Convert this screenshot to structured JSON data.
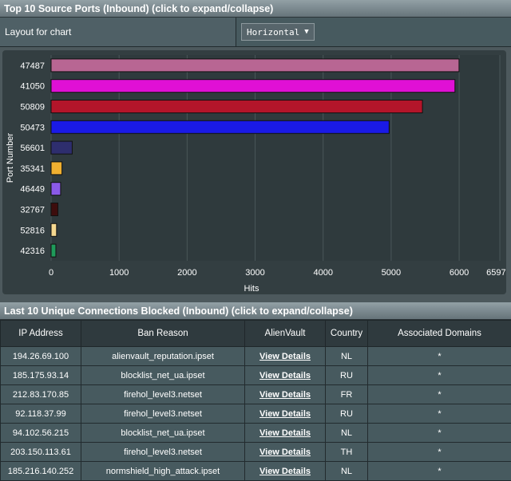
{
  "ports_panel": {
    "title": "Top 10 Source Ports (Inbound) (click to expand/collapse)",
    "layout_label": "Layout for chart",
    "layout_value": "Horizontal",
    "caret": "▼"
  },
  "chart_data": {
    "type": "bar",
    "orientation": "horizontal",
    "title": "",
    "xlabel": "Hits",
    "ylabel": "Port Number",
    "xlim": [
      0,
      6597.8
    ],
    "x_ticks": [
      "0",
      "1000",
      "2000",
      "3000",
      "4000",
      "5000",
      "6000",
      "6597.8"
    ],
    "grid": true,
    "categories": [
      "47487",
      "41050",
      "50809",
      "50473",
      "56601",
      "35341",
      "46449",
      "32767",
      "52816",
      "42316"
    ],
    "values": [
      5998,
      5938,
      5460,
      4970,
      310,
      160,
      140,
      100,
      80,
      70
    ],
    "colors": [
      "#b86693",
      "#e010d5",
      "#b3152a",
      "#1a1ae6",
      "#2e2e6e",
      "#f0b030",
      "#8a5ae8",
      "#3d0d0d",
      "#f5d890",
      "#1f9a5a"
    ]
  },
  "blocked_panel": {
    "title": "Last 10 Unique Connections Blocked (Inbound) (click to expand/collapse)",
    "columns": [
      "IP Address",
      "Ban Reason",
      "AlienVault",
      "Country",
      "Associated Domains"
    ],
    "rows": [
      [
        "194.26.69.100",
        "alienvault_reputation.ipset",
        "View Details",
        "NL",
        "*"
      ],
      [
        "185.175.93.14",
        "blocklist_net_ua.ipset",
        "View Details",
        "RU",
        "*"
      ],
      [
        "212.83.170.85",
        "firehol_level3.netset",
        "View Details",
        "FR",
        "*"
      ],
      [
        "92.118.37.99",
        "firehol_level3.netset",
        "View Details",
        "RU",
        "*"
      ],
      [
        "94.102.56.215",
        "blocklist_net_ua.ipset",
        "View Details",
        "NL",
        "*"
      ],
      [
        "203.150.113.61",
        "firehol_level3.netset",
        "View Details",
        "TH",
        "*"
      ],
      [
        "185.216.140.252",
        "normshield_high_attack.ipset",
        "View Details",
        "NL",
        "*"
      ]
    ]
  }
}
